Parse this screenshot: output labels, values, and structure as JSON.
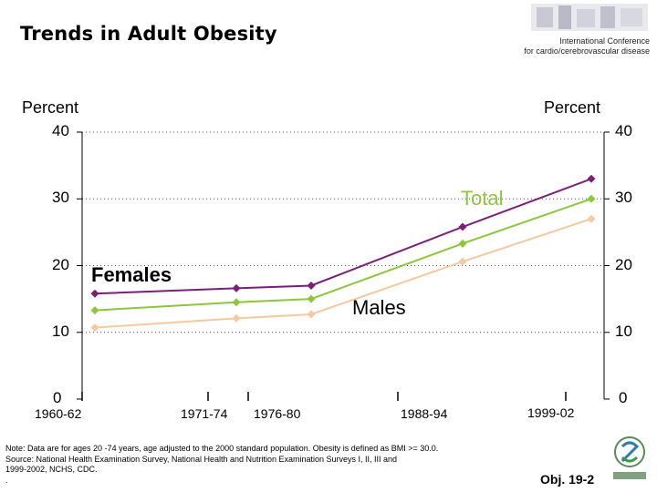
{
  "header": {
    "title": "Trends in Adult Obesity",
    "conference_line1": "International Conference",
    "conference_line2": "for cardio/cerebrovascular disease"
  },
  "chart_data": {
    "type": "line",
    "categories": [
      "1960-62",
      "1971-74",
      "1976-80",
      "1988-94",
      "1999-02"
    ],
    "y_left_label": "Percent",
    "y_right_label": "Percent",
    "ylim": [
      0,
      40
    ],
    "y_ticks": [
      "0",
      "10",
      "20",
      "30",
      "40"
    ],
    "gridlines": "horizontal dotted",
    "series": [
      {
        "name": "Females",
        "color": "#7a1f7a",
        "values": [
          15.8,
          16.6,
          17.0,
          25.8,
          33.0
        ]
      },
      {
        "name": "Total",
        "color": "#8dc63f",
        "values": [
          13.3,
          14.5,
          15.0,
          23.3,
          30.0
        ]
      },
      {
        "name": "Males",
        "color": "#f6c9a0",
        "values": [
          10.7,
          12.1,
          12.7,
          20.6,
          27.0
        ]
      }
    ]
  },
  "footer": {
    "note_line1": "Note:  Data are for ages 20 -74 years, age adjusted to the 2000 standard population. Obesity is defined as BMI >= 30.0.",
    "note_line2": "Source: National Health Examination Survey, National Health and Nutrition Examination Surveys I, II, III and",
    "note_line3": "1999-2002, NCHS, CDC.",
    "note_line4": ".",
    "slide_id": "Obj. 19-2"
  }
}
